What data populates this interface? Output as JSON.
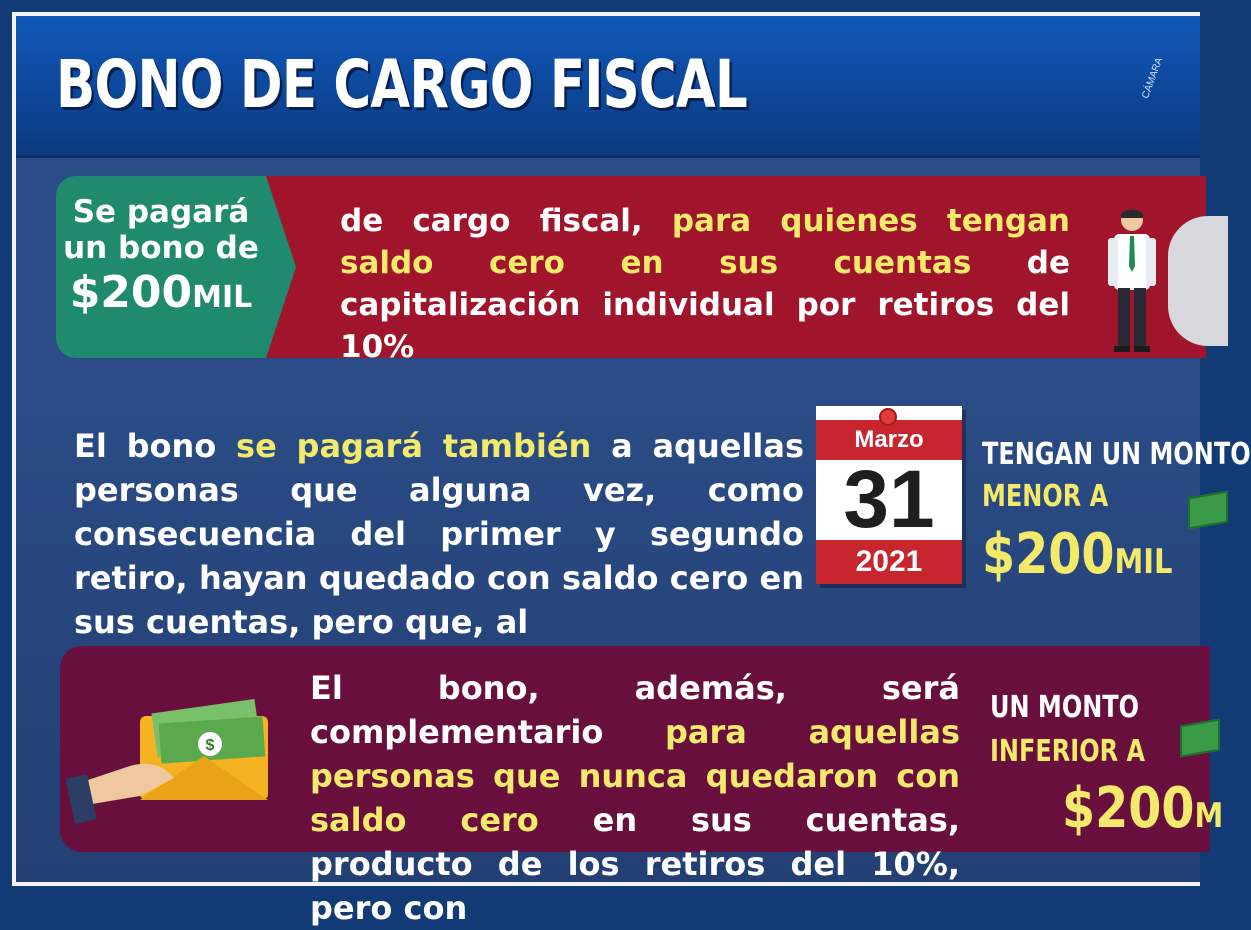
{
  "header": {
    "title": "BONO DE CARGO FISCAL",
    "logo_text": "CÁMARA"
  },
  "row1": {
    "badge_line1": "Se pagará",
    "badge_line2": "un bono de",
    "badge_amount": "$200",
    "badge_unit": "MIL",
    "text_part1": "de cargo fiscal, ",
    "text_highlight": "para quienes tengan saldo cero en sus cuentas",
    "text_part2": " de capitalización individual por retiros del 10%"
  },
  "row2": {
    "text_part1": "El bono ",
    "text_highlight": "se pagará también",
    "text_part2": " a aquellas personas que alguna vez, como consecuencia del primer y segundo retiro, hayan quedado con saldo cero en sus cuentas, pero que, al",
    "calendar_month": "Marzo",
    "calendar_day": "31",
    "calendar_year": "2021",
    "side_line1": "TENGAN UN MONTO",
    "side_line2": "MENOR A",
    "side_amount": "$200",
    "side_unit": "MIL"
  },
  "row3": {
    "text_part1": "El bono, además, será complementario ",
    "text_highlight": "para aquellas personas que nunca quedaron con saldo cero",
    "text_part2": " en sus cuentas, producto de los retiros del 10%, pero con",
    "side_line1": "UN MONTO",
    "side_line2": "INFERIOR A",
    "side_amount": "$200",
    "side_unit": "M"
  },
  "colors": {
    "header_blue": "#0d4aa0",
    "red_band": "#a0152b",
    "green_badge": "#1f8a6e",
    "maroon_band": "#690f3e",
    "highlight_yellow": "#f3e96a"
  }
}
